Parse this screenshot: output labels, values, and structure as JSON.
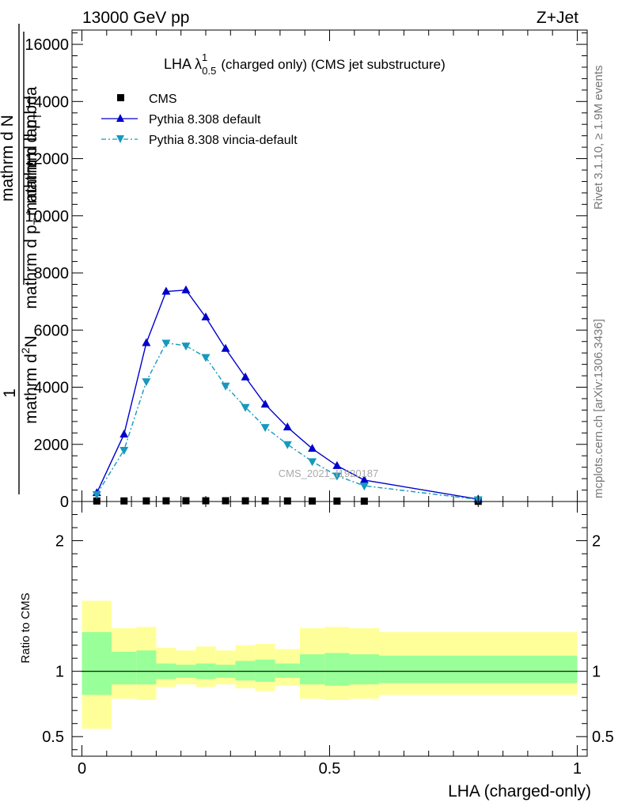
{
  "header": {
    "left": "13000 GeV pp",
    "right": "Z+Jet"
  },
  "side_labels": {
    "rivet": "Rivet 3.1.10, ≥ 1.9M events",
    "mcplots": "mcplots.cern.ch [arXiv:1306.3436]"
  },
  "chart_data": [
    {
      "type": "line",
      "title_main": "LHA λ",
      "title_sup": "1",
      "title_sub": "0.5",
      "title_rest": "(charged only) (CMS jet substructure)",
      "watermark": "CMS_2021_I1920187",
      "xlabel": "LHA (charged-only)",
      "ylabel": {
        "prefix": "1",
        "num": "mathrm d N",
        "den": "mathrm d p",
        "den_sub": "T",
        "num2": "mathrm d",
        "num2_sup": "2",
        "num2_rest": "N",
        "den2": "mathrm d p",
        "den2_sub": "T",
        "den2_rest": "mathrm d lambda"
      },
      "xlim": [
        -0.02,
        1.02
      ],
      "ylim": [
        0,
        16500
      ],
      "yticks": [
        {
          "v": 0,
          "label": "0"
        },
        {
          "v": 2000,
          "label": "2000"
        },
        {
          "v": 4000,
          "label": "4000"
        },
        {
          "v": 6000,
          "label": "6000"
        },
        {
          "v": 8000,
          "label": "8000"
        },
        {
          "v": 10000,
          "label": "10000"
        },
        {
          "v": 12000,
          "label": "12000"
        },
        {
          "v": 14000,
          "label": "14000"
        },
        {
          "v": 16000,
          "label": "16000"
        }
      ],
      "legend": [
        {
          "name": "CMS"
        },
        {
          "name": "Pythia 8.308 default"
        },
        {
          "name": "Pythia 8.308 vincia-default"
        }
      ],
      "series": [
        {
          "name": "CMS",
          "color": "#000000",
          "marker": "square",
          "x": [
            0.03,
            0.085,
            0.13,
            0.17,
            0.21,
            0.25,
            0.29,
            0.33,
            0.37,
            0.415,
            0.465,
            0.515,
            0.57,
            0.8
          ],
          "y": [
            18,
            20,
            22,
            24,
            26,
            26,
            26,
            24,
            22,
            20,
            18,
            15,
            12,
            6
          ]
        },
        {
          "name": "Pythia 8.308 default",
          "color": "#0000cc",
          "marker": "triangle-up",
          "x": [
            0.03,
            0.085,
            0.13,
            0.17,
            0.21,
            0.25,
            0.29,
            0.33,
            0.37,
            0.415,
            0.465,
            0.515,
            0.57,
            0.8
          ],
          "y": [
            300,
            2350,
            5550,
            7350,
            7400,
            6450,
            5350,
            4350,
            3400,
            2600,
            1850,
            1250,
            750,
            80
          ]
        },
        {
          "name": "Pythia 8.308 vincia-default",
          "color": "#1798be",
          "marker": "triangle-down",
          "x": [
            0.03,
            0.085,
            0.13,
            0.17,
            0.21,
            0.25,
            0.29,
            0.33,
            0.37,
            0.415,
            0.465,
            0.515,
            0.57,
            0.8
          ],
          "y": [
            250,
            1800,
            4200,
            5550,
            5450,
            5050,
            4050,
            3300,
            2600,
            2000,
            1400,
            900,
            550,
            70
          ]
        }
      ]
    },
    {
      "type": "area",
      "ylabel": "Ratio to CMS",
      "xlim": [
        -0.02,
        1.02
      ],
      "ylim": [
        0.35,
        2.3
      ],
      "yticks": [
        {
          "v": 0.5,
          "label": "0.5"
        },
        {
          "v": 1,
          "label": "1"
        },
        {
          "v": 2,
          "label": "2"
        }
      ],
      "xticks": [
        {
          "v": 0,
          "label": "0"
        },
        {
          "v": 0.5,
          "label": "0.5"
        },
        {
          "v": 1,
          "label": "1"
        }
      ],
      "reference": 1,
      "band_colors": {
        "inner": "#99ff99",
        "outer": "#ffff99"
      },
      "bins": [
        {
          "x0": 0.0,
          "x1": 0.06,
          "lo1": 0.82,
          "hi1": 1.3,
          "lo2": 0.56,
          "hi2": 1.54
        },
        {
          "x0": 0.06,
          "x1": 0.11,
          "lo1": 0.9,
          "hi1": 1.15,
          "lo2": 0.79,
          "hi2": 1.33
        },
        {
          "x0": 0.11,
          "x1": 0.15,
          "lo1": 0.9,
          "hi1": 1.16,
          "lo2": 0.78,
          "hi2": 1.34
        },
        {
          "x0": 0.15,
          "x1": 0.19,
          "lo1": 0.94,
          "hi1": 1.06,
          "lo2": 0.88,
          "hi2": 1.18
        },
        {
          "x0": 0.19,
          "x1": 0.23,
          "lo1": 0.95,
          "hi1": 1.05,
          "lo2": 0.9,
          "hi2": 1.16
        },
        {
          "x0": 0.23,
          "x1": 0.27,
          "lo1": 0.94,
          "hi1": 1.06,
          "lo2": 0.88,
          "hi2": 1.19
        },
        {
          "x0": 0.27,
          "x1": 0.31,
          "lo1": 0.95,
          "hi1": 1.05,
          "lo2": 0.9,
          "hi2": 1.16
        },
        {
          "x0": 0.31,
          "x1": 0.35,
          "lo1": 0.93,
          "hi1": 1.08,
          "lo2": 0.87,
          "hi2": 1.2
        },
        {
          "x0": 0.35,
          "x1": 0.39,
          "lo1": 0.92,
          "hi1": 1.09,
          "lo2": 0.85,
          "hi2": 1.21
        },
        {
          "x0": 0.39,
          "x1": 0.44,
          "lo1": 0.95,
          "hi1": 1.06,
          "lo2": 0.89,
          "hi2": 1.17
        },
        {
          "x0": 0.44,
          "x1": 0.49,
          "lo1": 0.9,
          "hi1": 1.13,
          "lo2": 0.79,
          "hi2": 1.33
        },
        {
          "x0": 0.49,
          "x1": 0.54,
          "lo1": 0.89,
          "hi1": 1.14,
          "lo2": 0.78,
          "hi2": 1.34
        },
        {
          "x0": 0.54,
          "x1": 0.6,
          "lo1": 0.9,
          "hi1": 1.13,
          "lo2": 0.79,
          "hi2": 1.33
        },
        {
          "x0": 0.6,
          "x1": 1.0,
          "lo1": 0.91,
          "hi1": 1.12,
          "lo2": 0.82,
          "hi2": 1.3
        }
      ]
    }
  ]
}
